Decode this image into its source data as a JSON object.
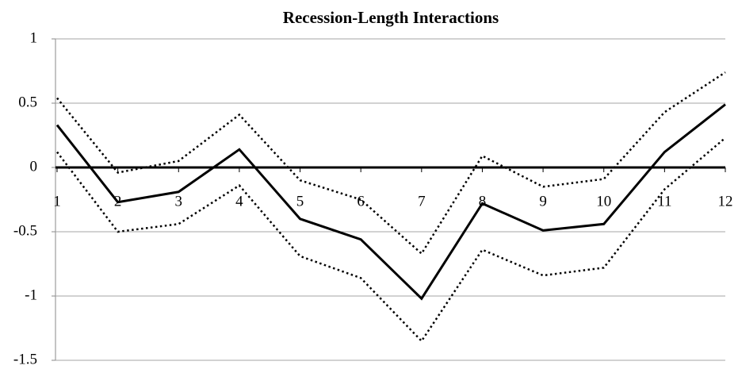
{
  "chart_data": {
    "type": "line",
    "title": "Recession-Length Interactions",
    "categories": [
      "1",
      "2",
      "3",
      "4",
      "5",
      "6",
      "7",
      "8",
      "9",
      "10",
      "11",
      "12"
    ],
    "series": [
      {
        "color": "#000000",
        "dash": "solid",
        "values": [
          0.33,
          -0.27,
          -0.19,
          0.14,
          -0.4,
          -0.56,
          -1.02,
          -0.28,
          -0.49,
          -0.44,
          0.12,
          0.49
        ]
      },
      {
        "color": "#000000",
        "dash": "dotted",
        "values": [
          0.54,
          -0.04,
          0.05,
          0.41,
          -0.1,
          -0.25,
          -0.67,
          0.09,
          -0.15,
          -0.09,
          0.43,
          0.74
        ]
      },
      {
        "color": "#000000",
        "dash": "dotted",
        "values": [
          0.12,
          -0.5,
          -0.44,
          -0.14,
          -0.69,
          -0.86,
          -1.35,
          -0.64,
          -0.84,
          -0.78,
          -0.17,
          0.23
        ]
      }
    ],
    "ylim": [
      -1.5,
      1
    ],
    "yticks": [
      -1.5,
      -1,
      -0.5,
      0,
      0.5,
      1
    ],
    "grid": true
  }
}
